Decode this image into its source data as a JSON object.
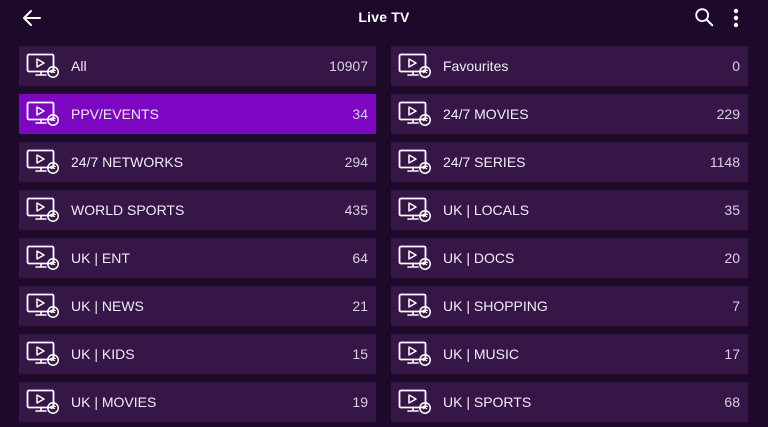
{
  "header": {
    "title": "Live TV",
    "back_icon": "back-arrow-icon",
    "search_icon": "search-icon",
    "more_icon": "more-vertical-icon"
  },
  "colors": {
    "background": "#1d0a2b",
    "tile": "#351646",
    "active_tile": "#7d06c2"
  },
  "categories": [
    {
      "name": "All",
      "count": "10907",
      "active": false
    },
    {
      "name": "Favourites",
      "count": "0",
      "active": false
    },
    {
      "name": "PPV/EVENTS",
      "count": "34",
      "active": true
    },
    {
      "name": "24/7 MOVIES",
      "count": "229",
      "active": false
    },
    {
      "name": "24/7 NETWORKS",
      "count": "294",
      "active": false
    },
    {
      "name": "24/7 SERIES",
      "count": "1148",
      "active": false
    },
    {
      "name": "WORLD SPORTS",
      "count": "435",
      "active": false
    },
    {
      "name": "UK | LOCALS",
      "count": "35",
      "active": false
    },
    {
      "name": "UK | ENT",
      "count": "64",
      "active": false
    },
    {
      "name": "UK | DOCS",
      "count": "20",
      "active": false
    },
    {
      "name": "UK | NEWS",
      "count": "21",
      "active": false
    },
    {
      "name": "UK | SHOPPING",
      "count": "7",
      "active": false
    },
    {
      "name": "UK | KIDS",
      "count": "15",
      "active": false
    },
    {
      "name": "UK | MUSIC",
      "count": "17",
      "active": false
    },
    {
      "name": "UK | MOVIES",
      "count": "19",
      "active": false
    },
    {
      "name": "UK | SPORTS",
      "count": "68",
      "active": false
    }
  ]
}
